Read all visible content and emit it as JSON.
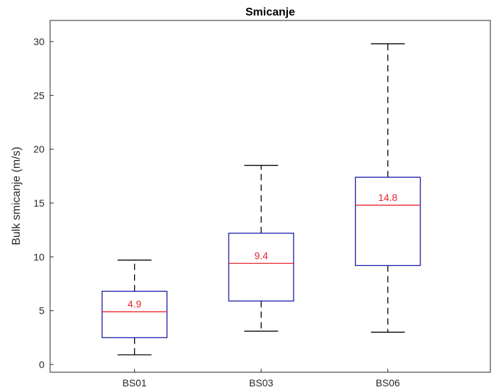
{
  "chart_data": {
    "type": "box",
    "title": "Smicanje",
    "xlabel": "",
    "ylabel": "Bulk smicanje (m/s)",
    "ylim": [
      -0.5,
      31
    ],
    "yticks": [
      0,
      5,
      10,
      15,
      20,
      25,
      30
    ],
    "grid": false,
    "categories": [
      "BS01",
      "BS03",
      "BS06"
    ],
    "boxes": [
      {
        "category": "BS01",
        "min": 0.9,
        "q1": 2.5,
        "median": 4.9,
        "q3": 6.8,
        "max": 9.7,
        "median_label": "4.9"
      },
      {
        "category": "BS03",
        "min": 3.1,
        "q1": 5.9,
        "median": 9.4,
        "q3": 12.2,
        "max": 18.5,
        "median_label": "9.4"
      },
      {
        "category": "BS06",
        "min": 3.0,
        "q1": 9.2,
        "median": 14.8,
        "q3": 17.4,
        "max": 29.8,
        "median_label": "14.8"
      }
    ],
    "colors": {
      "box": "#1a1aaa",
      "median": "#e8222a",
      "whisker": "#000000",
      "axis": "#262626"
    }
  }
}
